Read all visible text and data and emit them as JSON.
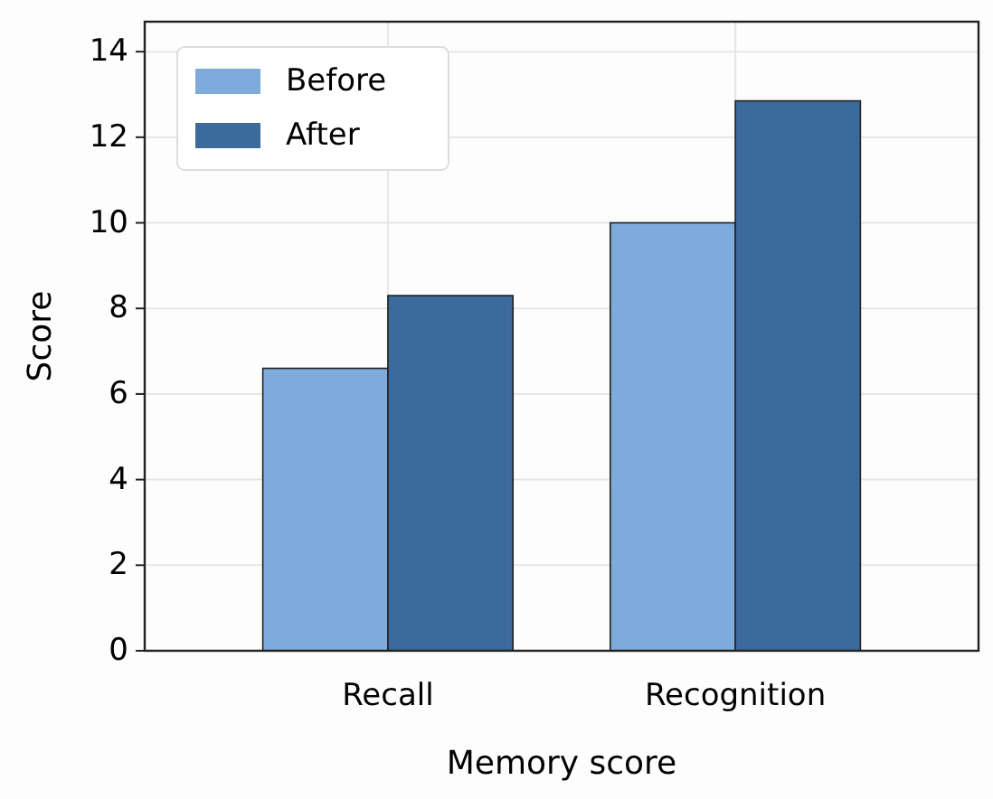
{
  "chart_data": {
    "type": "bar",
    "xlabel": "Memory score",
    "ylabel": "Score",
    "categories": [
      "Recall",
      "Recognition"
    ],
    "series": [
      {
        "name": "Before",
        "color": "#7faadc",
        "values": [
          6.6,
          10.0
        ]
      },
      {
        "name": "After",
        "color": "#3d6a9c",
        "values": [
          8.3,
          12.85
        ]
      }
    ],
    "ylim": [
      0,
      14.7
    ],
    "yticks": [
      0,
      2,
      4,
      6,
      8,
      10,
      12,
      14
    ],
    "grid": true,
    "legend": "top left"
  }
}
